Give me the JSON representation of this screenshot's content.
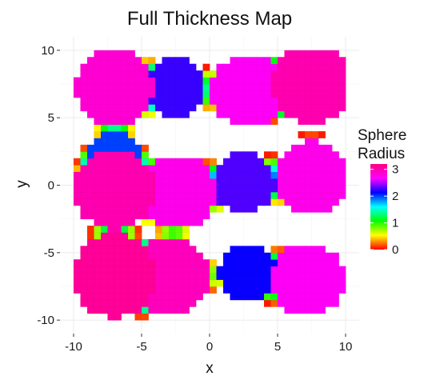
{
  "chart_data": {
    "type": "heatmap",
    "title": "Full Thickness Map",
    "xlabel": "x",
    "ylabel": "y",
    "xlim": [
      -11,
      11
    ],
    "ylim": [
      -11,
      11
    ],
    "x_ticks": [
      -10,
      -5,
      0,
      5,
      10
    ],
    "y_ticks": [
      -10,
      -5,
      0,
      5,
      10
    ],
    "x_tick_labels": [
      "-10",
      "-5",
      "0",
      "5",
      "10"
    ],
    "y_tick_labels": [
      "-10",
      "-5",
      "0",
      "5",
      "10"
    ],
    "grid": true,
    "panel_background": "#ffffff",
    "grid_color": "#ebebeb",
    "cell_size": 0.5,
    "extent": {
      "x": [
        -10,
        10
      ],
      "y": [
        -10,
        10
      ]
    },
    "spheres": [
      {
        "x": -7,
        "y": 7.2,
        "r": 2.85
      },
      {
        "x": -2.5,
        "y": 7.2,
        "r": 2.25
      },
      {
        "x": 2.8,
        "y": 7.0,
        "r": 2.7
      },
      {
        "x": 7.5,
        "y": 7.5,
        "r": 3.0
      },
      {
        "x": -7,
        "y": 2.0,
        "r": 2.0
      },
      {
        "x": -7,
        "y": -0.3,
        "r": 3.0
      },
      {
        "x": -2.3,
        "y": -0.5,
        "r": 2.75
      },
      {
        "x": 2.5,
        "y": 0.2,
        "r": 2.3
      },
      {
        "x": 7.5,
        "y": 0.6,
        "r": 2.75
      },
      {
        "x": -3,
        "y": -6.8,
        "r": 2.95
      },
      {
        "x": -7,
        "y": -6.7,
        "r": 3.1
      },
      {
        "x": 2.8,
        "y": -6.5,
        "r": 2.15
      },
      {
        "x": 7.2,
        "y": -7.0,
        "r": 2.7
      }
    ],
    "legend": {
      "title_lines": [
        "Sphere",
        "Radius"
      ],
      "labels": [
        "3",
        "2",
        "1",
        "0"
      ],
      "values": [
        3,
        2,
        1,
        0
      ],
      "limits": [
        0,
        3.2
      ],
      "placement": "right"
    },
    "colormap": [
      "#ff0000",
      "#ffff00",
      "#00ff00",
      "#00ffff",
      "#0000ff",
      "#ff00ff",
      "#ff0080"
    ]
  }
}
